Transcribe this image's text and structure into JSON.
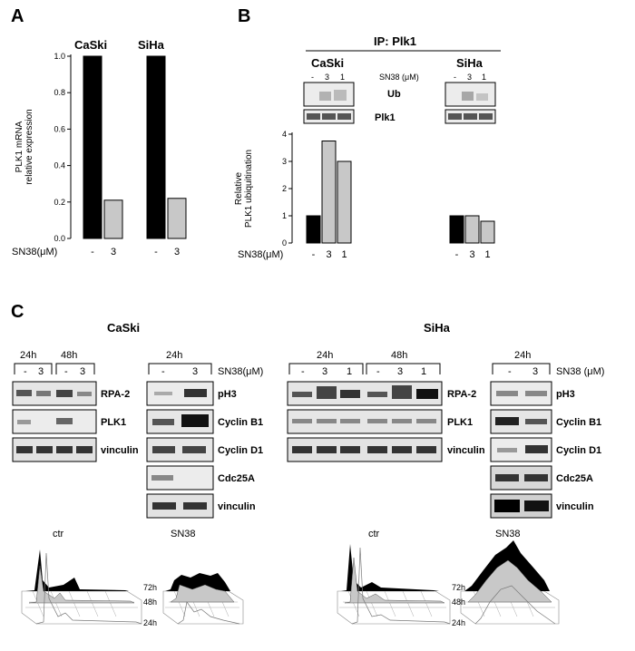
{
  "panel_labels": {
    "a": "A",
    "b": "B",
    "c": "C"
  },
  "chart_data": [
    {
      "type": "bar",
      "panel": "A",
      "groups": [
        "CaSki",
        "SiHa"
      ],
      "categories": [
        "-",
        "3"
      ],
      "series": [
        {
          "name": "CaSki",
          "values": [
            1.0,
            0.21
          ]
        },
        {
          "name": "SiHa",
          "values": [
            1.0,
            0.22
          ]
        }
      ],
      "bar_colors": [
        "#000000",
        "#c8c8c8"
      ],
      "ylabel": [
        "PLK1 mRNA",
        "relative expression"
      ],
      "xlabel": "SN38(μM)",
      "ylim": [
        0,
        1.0
      ],
      "yticks": [
        "0.0",
        "0.2",
        "0.4",
        "0.6",
        "0.8",
        "1.0"
      ]
    },
    {
      "type": "bar",
      "panel": "B",
      "groups": [
        "CaSki",
        "SiHa"
      ],
      "categories": [
        "-",
        "3",
        "1"
      ],
      "series": [
        {
          "name": "CaSki",
          "values": [
            1.0,
            3.75,
            3.0
          ]
        },
        {
          "name": "SiHa",
          "values": [
            1.0,
            1.0,
            0.8
          ]
        }
      ],
      "bar_colors": [
        "#000000",
        "#c8c8c8",
        "#c8c8c8"
      ],
      "ylabel": [
        "Relative",
        "PLK1 ubiquitination"
      ],
      "xlabel": "SN38(μM)",
      "ylim": [
        0,
        4
      ],
      "yticks": [
        "0",
        "1",
        "2",
        "3",
        "4"
      ]
    }
  ],
  "panel_b": {
    "ip_title": "IP: Plk1",
    "caski": "CaSki",
    "siha": "SiHa",
    "sn38_label": "SN38 (μM)",
    "lanes": [
      "-",
      "3",
      "1"
    ],
    "blots": [
      "Ub",
      "Plk1"
    ]
  },
  "panel_c": {
    "caski_title": "CaSki",
    "siha_title": "SiHa",
    "time_24": "24h",
    "time_48": "48h",
    "dash": "-",
    "dose3": "3",
    "dose1": "1",
    "sn38_label": "SN38(μM)",
    "sn38_label_spaced": "SN38 (μM)",
    "left_blots": [
      "RPA-2",
      "PLK1",
      "vinculin"
    ],
    "right_blots": [
      "pH3",
      "Cyclin B1",
      "Cyclin D1",
      "Cdc25A",
      "vinculin"
    ],
    "flow_labels": [
      "ctr",
      "SN38"
    ],
    "flow_times": [
      "72h",
      "48h",
      "24h"
    ]
  }
}
